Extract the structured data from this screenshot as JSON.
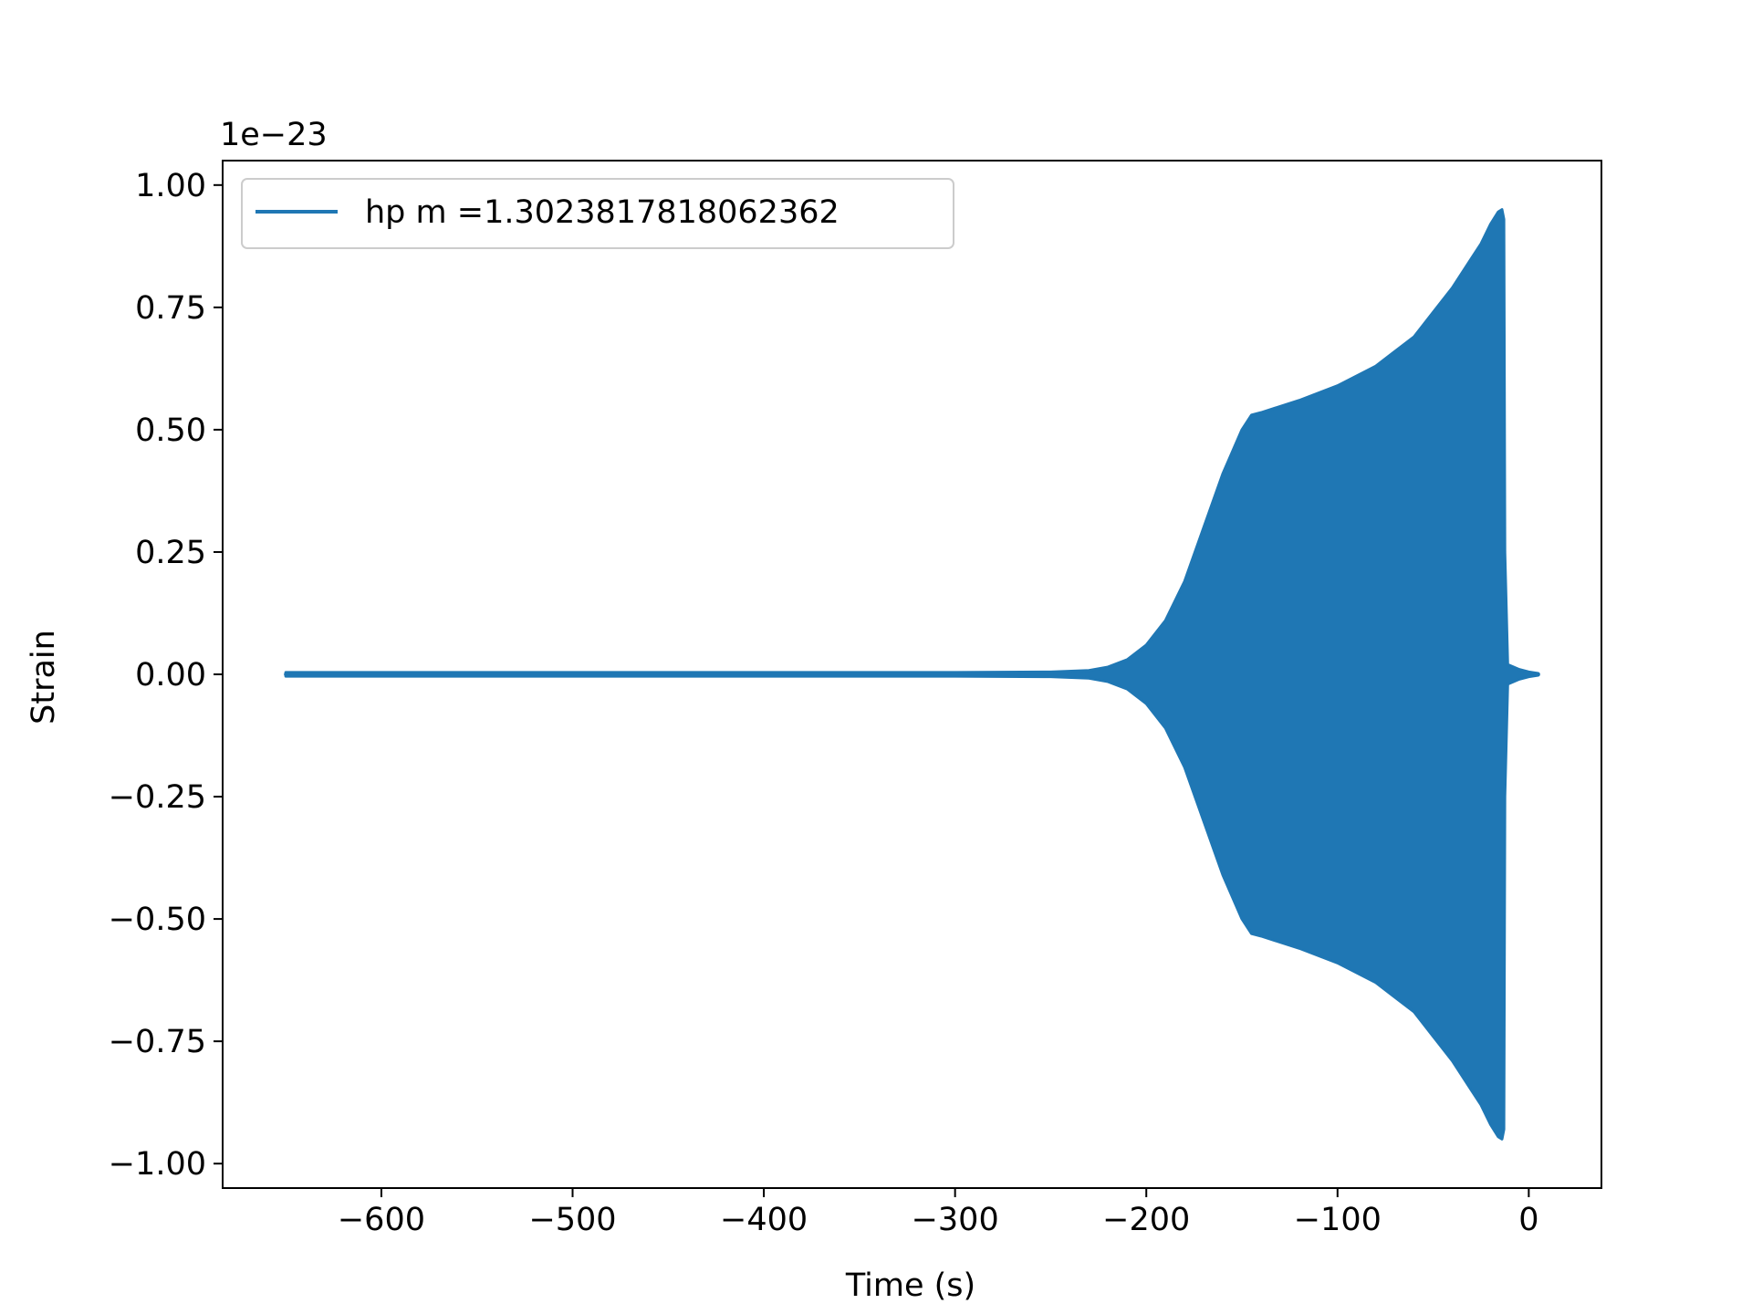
{
  "chart_data": {
    "type": "line",
    "title": "",
    "xlabel": "Time (s)",
    "ylabel": "Strain",
    "offset_label": "1e−23",
    "xlim": [
      -683,
      38
    ],
    "ylim": [
      -1.05,
      1.05
    ],
    "xticks": [
      -600,
      -500,
      -400,
      -300,
      -200,
      -100,
      0
    ],
    "xtick_labels": [
      "−600",
      "−500",
      "−400",
      "−300",
      "−200",
      "−100",
      "0"
    ],
    "yticks": [
      1.0,
      0.75,
      0.5,
      0.25,
      0.0,
      -0.25,
      -0.5,
      -0.75,
      -1.0
    ],
    "ytick_labels": [
      "1.00",
      "0.75",
      "0.50",
      "0.25",
      "0.00",
      "−0.25",
      "−0.50",
      "−0.75",
      "−1.00"
    ],
    "grid": false,
    "legend_position": "upper-left",
    "series": [
      {
        "name": "hp m =1.3023817818062362",
        "color": "#1f77b4",
        "x_start": -650,
        "x_end": 5,
        "envelope": {
          "x": [
            -650,
            -400,
            -300,
            -250,
            -230,
            -220,
            -210,
            -200,
            -190,
            -180,
            -170,
            -160,
            -150,
            -145,
            -140,
            -120,
            -100,
            -80,
            -60,
            -50,
            -40,
            -30,
            -25,
            -20,
            -16,
            -14,
            -13,
            -12.5,
            -11,
            -5,
            0,
            5
          ],
          "amplitude": [
            0.004,
            0.004,
            0.004,
            0.005,
            0.008,
            0.015,
            0.03,
            0.06,
            0.11,
            0.19,
            0.3,
            0.41,
            0.5,
            0.53,
            0.535,
            0.56,
            0.59,
            0.63,
            0.69,
            0.74,
            0.79,
            0.85,
            0.88,
            0.92,
            0.945,
            0.95,
            0.93,
            0.25,
            0.02,
            0.01,
            0.005,
            0.002
          ]
        }
      }
    ]
  }
}
